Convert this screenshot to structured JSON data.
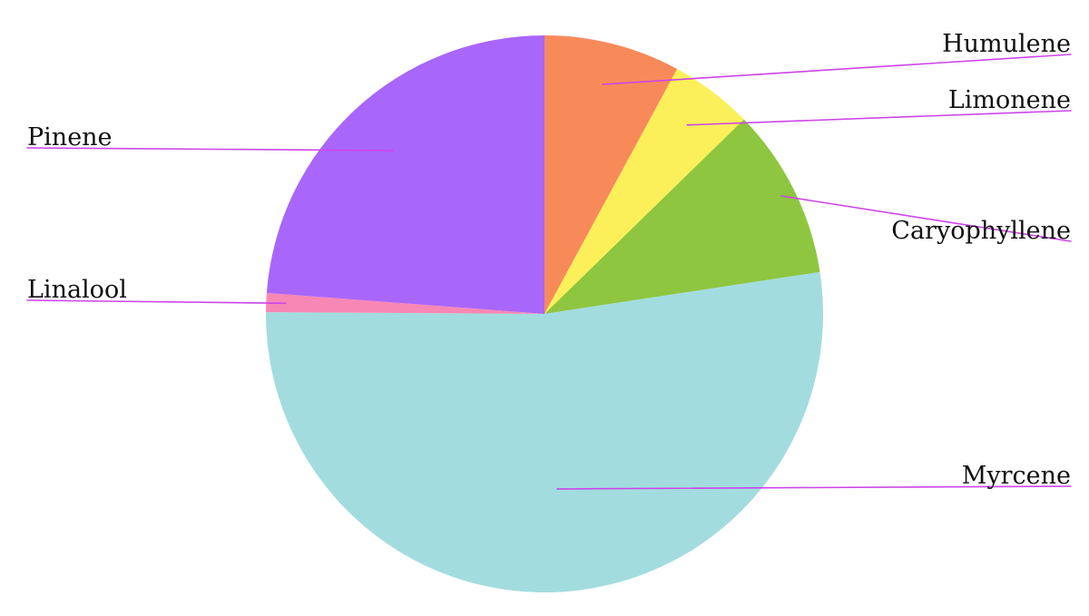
{
  "chart_data": {
    "type": "pie",
    "start_angle": "top",
    "direction": "clockwise",
    "leader_color": "#cc44e8",
    "slices": [
      {
        "label": "Humulene",
        "value": 7.9,
        "color": "#f88a5a"
      },
      {
        "label": "Limonene",
        "value": 4.8,
        "color": "#fbf05a"
      },
      {
        "label": "Caryophyllene",
        "value": 9.9,
        "color": "#8ec63f"
      },
      {
        "label": "Myrcene",
        "value": 52.5,
        "color": "#a3dcdf"
      },
      {
        "label": "Linalool",
        "value": 1.1,
        "color": "#f787b4"
      },
      {
        "label": "Pinene",
        "value": 23.8,
        "color": "#a966fb"
      }
    ]
  }
}
